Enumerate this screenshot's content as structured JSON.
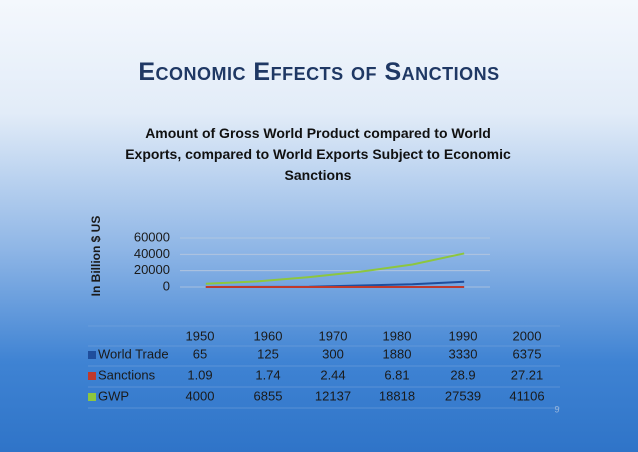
{
  "slide": {
    "title": "Economic Effects of Sanctions",
    "number": "9"
  },
  "chart_data": {
    "type": "line",
    "title": "Amount of Gross World Product compared to World Exports, compared to World Exports Subject to Economic Sanctions",
    "y_label": "In Billion $ US",
    "categories": [
      "1950",
      "1960",
      "1970",
      "1980",
      "1990",
      "2000"
    ],
    "series": [
      {
        "name": "World Trade",
        "color": "#1f4e9c",
        "values": [
          65,
          125,
          300,
          1880,
          3330,
          6375
        ]
      },
      {
        "name": "Sanctions",
        "color": "#c0392b",
        "values": [
          1.09,
          1.74,
          2.44,
          6.81,
          28.9,
          27.21
        ]
      },
      {
        "name": "GWP",
        "color": "#8dc63f",
        "values": [
          4000,
          6855,
          12137,
          18818,
          27539,
          41106
        ]
      }
    ],
    "ylim": [
      0,
      60000
    ],
    "yticks": [
      0,
      20000,
      40000,
      60000
    ],
    "grid": true
  }
}
